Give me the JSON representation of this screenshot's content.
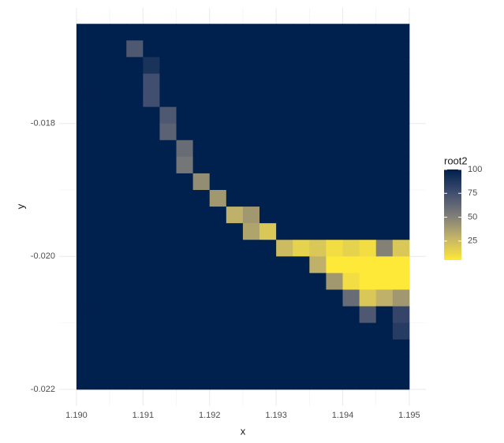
{
  "chart_data": {
    "type": "raster",
    "xlabel": "x",
    "ylabel": "y",
    "legend_title": "root2",
    "xlim": [
      1.18974,
      1.19525
    ],
    "ylim": [
      -0.02225,
      -0.01626
    ],
    "xticks": [
      {
        "value": 1.19,
        "label": "1.190"
      },
      {
        "value": 1.191,
        "label": "1.191"
      },
      {
        "value": 1.192,
        "label": "1.192"
      },
      {
        "value": 1.193,
        "label": "1.193"
      },
      {
        "value": 1.194,
        "label": "1.194"
      },
      {
        "value": 1.195,
        "label": "1.195"
      }
    ],
    "yticks": [
      {
        "value": -0.022,
        "label": "-0.022"
      },
      {
        "value": -0.02,
        "label": "-0.020"
      },
      -0.018
    ],
    "grid": true,
    "zlim": [
      5,
      100
    ],
    "legend_ticks": [
      25,
      50,
      75,
      100
    ],
    "colorscale": [
      "#fee838",
      "#c3b369",
      "#7c7b78",
      "#3e4c6e",
      "#00204d"
    ],
    "x": [
      1.190125,
      1.190375,
      1.190625,
      1.190875,
      1.191125,
      1.191375,
      1.191625,
      1.191875,
      1.192125,
      1.192375,
      1.192625,
      1.192875,
      1.193125,
      1.193375,
      1.193625,
      1.193875,
      1.194125,
      1.194375,
      1.194625,
      1.194875
    ],
    "y": [
      -0.016625,
      -0.016875,
      -0.017125,
      -0.017375,
      -0.017625,
      -0.017875,
      -0.018125,
      -0.018375,
      -0.018625,
      -0.018875,
      -0.019125,
      -0.019375,
      -0.019625,
      -0.019875,
      -0.020125,
      -0.020375,
      -0.020625,
      -0.020875,
      -0.021125,
      -0.021375,
      -0.021625,
      -0.021875
    ],
    "values": [
      [
        100,
        100,
        100,
        100,
        100,
        100,
        100,
        100,
        100,
        100,
        100,
        100,
        100,
        100,
        100,
        100,
        100,
        100,
        100,
        100
      ],
      [
        100,
        100,
        100,
        70,
        100,
        100,
        100,
        100,
        100,
        100,
        100,
        100,
        100,
        100,
        100,
        100,
        100,
        100,
        100,
        100
      ],
      [
        100,
        100,
        100,
        100,
        90,
        100,
        100,
        100,
        100,
        100,
        100,
        100,
        100,
        100,
        100,
        100,
        100,
        100,
        100,
        100
      ],
      [
        100,
        100,
        100,
        100,
        75,
        100,
        100,
        100,
        100,
        100,
        100,
        100,
        100,
        100,
        100,
        100,
        100,
        100,
        100,
        100
      ],
      [
        100,
        100,
        100,
        100,
        75,
        100,
        100,
        100,
        100,
        100,
        100,
        100,
        100,
        100,
        100,
        100,
        100,
        100,
        100,
        100
      ],
      [
        100,
        100,
        100,
        100,
        100,
        70,
        100,
        100,
        100,
        100,
        100,
        100,
        100,
        100,
        100,
        100,
        100,
        100,
        100,
        100
      ],
      [
        100,
        100,
        100,
        100,
        100,
        65,
        100,
        100,
        100,
        100,
        100,
        100,
        100,
        100,
        100,
        100,
        100,
        100,
        100,
        100
      ],
      [
        100,
        100,
        100,
        100,
        100,
        100,
        60,
        100,
        100,
        100,
        100,
        100,
        100,
        100,
        100,
        100,
        100,
        100,
        100,
        100
      ],
      [
        100,
        100,
        100,
        100,
        100,
        100,
        55,
        100,
        100,
        100,
        100,
        100,
        100,
        100,
        100,
        100,
        100,
        100,
        100,
        100
      ],
      [
        100,
        100,
        100,
        100,
        100,
        100,
        100,
        45,
        100,
        100,
        100,
        100,
        100,
        100,
        100,
        100,
        100,
        100,
        100,
        100
      ],
      [
        100,
        100,
        100,
        100,
        100,
        100,
        100,
        100,
        40,
        100,
        100,
        100,
        100,
        100,
        100,
        100,
        100,
        100,
        100,
        100
      ],
      [
        100,
        100,
        100,
        100,
        100,
        100,
        100,
        100,
        100,
        30,
        40,
        100,
        100,
        100,
        100,
        100,
        100,
        100,
        100,
        100
      ],
      [
        100,
        100,
        100,
        100,
        100,
        100,
        100,
        100,
        100,
        100,
        35,
        20,
        100,
        100,
        100,
        100,
        100,
        100,
        100,
        100
      ],
      [
        100,
        100,
        100,
        100,
        100,
        100,
        100,
        100,
        100,
        100,
        100,
        100,
        25,
        15,
        20,
        10,
        15,
        10,
        50,
        20
      ],
      [
        100,
        100,
        100,
        100,
        100,
        100,
        100,
        100,
        100,
        100,
        100,
        100,
        100,
        100,
        30,
        5,
        5,
        5,
        5,
        5
      ],
      [
        100,
        100,
        100,
        100,
        100,
        100,
        100,
        100,
        100,
        100,
        100,
        100,
        100,
        100,
        100,
        40,
        10,
        5,
        5,
        5
      ],
      [
        100,
        100,
        100,
        100,
        100,
        100,
        100,
        100,
        100,
        100,
        100,
        100,
        100,
        100,
        100,
        100,
        60,
        20,
        30,
        40
      ],
      [
        100,
        100,
        100,
        100,
        100,
        100,
        100,
        100,
        100,
        100,
        100,
        100,
        100,
        100,
        100,
        100,
        100,
        70,
        100,
        80
      ],
      [
        100,
        100,
        100,
        100,
        100,
        100,
        100,
        100,
        100,
        100,
        100,
        100,
        100,
        100,
        100,
        100,
        100,
        100,
        100,
        85
      ],
      [
        100,
        100,
        100,
        100,
        100,
        100,
        100,
        100,
        100,
        100,
        100,
        100,
        100,
        100,
        100,
        100,
        100,
        100,
        100,
        100
      ],
      [
        100,
        100,
        100,
        100,
        100,
        100,
        100,
        100,
        100,
        100,
        100,
        100,
        100,
        100,
        100,
        100,
        100,
        100,
        100,
        100
      ],
      [
        100,
        100,
        100,
        100,
        100,
        100,
        100,
        100,
        100,
        100,
        100,
        100,
        100,
        100,
        100,
        100,
        100,
        100,
        100,
        100
      ]
    ]
  }
}
